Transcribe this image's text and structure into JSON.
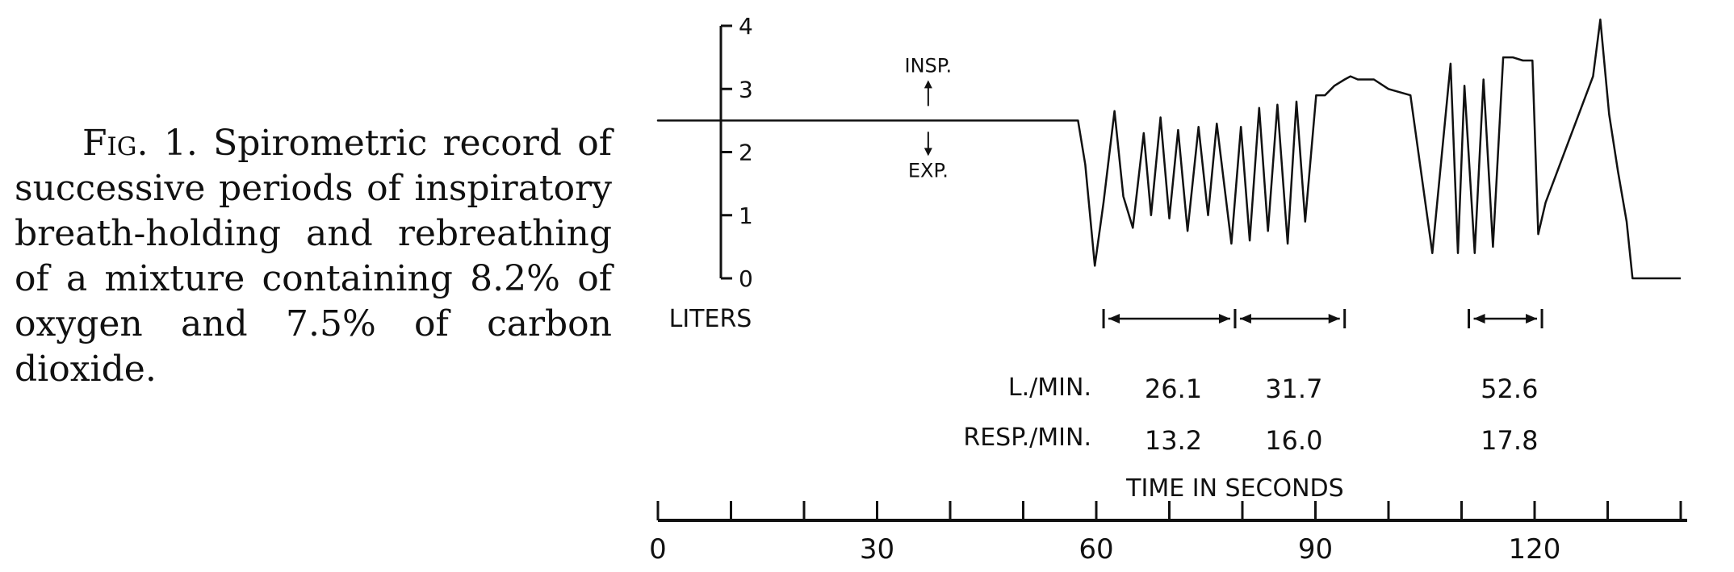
{
  "caption": {
    "figure_label": "Fig. 1.",
    "text": "Spirometric record of successive periods of inspiratory breath-holding and rebreathing of a mixture containing 8.2% of oxygen and 7.5% of carbon dioxide."
  },
  "chart_data": {
    "type": "line",
    "title": "",
    "ylabel": "LITERS",
    "xlabel": "TIME IN SECONDS",
    "ylim": [
      0,
      4
    ],
    "y_ticks": [
      {
        "value": 0,
        "label": "0"
      },
      {
        "value": 1,
        "label": "1"
      },
      {
        "value": 2,
        "label": "2"
      },
      {
        "value": 3,
        "label": "3"
      },
      {
        "value": 4,
        "label": "4"
      }
    ],
    "xlim": [
      0,
      140
    ],
    "x_ticks": [
      0,
      10,
      20,
      30,
      40,
      50,
      60,
      70,
      80,
      90,
      100,
      110,
      120,
      130,
      140
    ],
    "x_tick_labels": [
      {
        "value": 0,
        "label": "0"
      },
      {
        "value": 30,
        "label": "30"
      },
      {
        "value": 60,
        "label": "60"
      },
      {
        "value": 90,
        "label": "90"
      },
      {
        "value": 120,
        "label": "120"
      }
    ],
    "direction_labels": {
      "up": "INSP.",
      "down": "EXP."
    },
    "direction_arrow_x": 37,
    "series": [
      {
        "x": [
          0,
          57.5,
          58.5,
          59.8,
          61,
          62.5,
          63.7,
          65,
          66.5,
          67.5,
          68.8,
          70,
          71.2,
          72.5,
          74,
          75.3,
          76.5,
          78.5,
          79.8,
          81,
          82.3,
          83.5,
          84.8,
          86.2,
          87.4,
          88.6,
          90.1,
          91.3,
          92.6,
          94,
          94.8,
          95.8,
          98,
          100,
          103,
          106,
          108.5,
          109.5,
          110.4,
          111.8,
          113,
          114.3,
          115.7,
          117,
          118.4,
          119.7,
          120.5,
          121.5,
          128,
          129,
          130.2,
          131.4,
          132.6,
          133.4,
          134.2,
          135.6,
          137,
          140
        ],
        "y": [
          2.5,
          2.5,
          1.8,
          0.2,
          1.2,
          2.65,
          1.3,
          0.8,
          2.3,
          1.0,
          2.55,
          0.95,
          2.35,
          0.75,
          2.4,
          1.0,
          2.45,
          0.55,
          2.4,
          0.6,
          2.7,
          0.75,
          2.75,
          0.55,
          2.8,
          0.9,
          2.9,
          2.9,
          3.05,
          3.15,
          3.2,
          3.15,
          3.15,
          3.0,
          2.9,
          0.4,
          3.4,
          0.4,
          3.05,
          0.4,
          3.15,
          0.5,
          3.5,
          3.5,
          3.45,
          3.45,
          0.7,
          1.2,
          3.2,
          4.1,
          2.6,
          1.7,
          0.9,
          0.0,
          0.0,
          0.0,
          0.0,
          0.0
        ]
      }
    ],
    "intervals": [
      {
        "start": 61,
        "end": 79,
        "l_per_min": "26.1",
        "resp_per_min": "13.2"
      },
      {
        "start": 79,
        "end": 94,
        "l_per_min": "31.7",
        "resp_per_min": "16.0"
      },
      {
        "start": 111,
        "end": 121,
        "l_per_min": "52.6",
        "resp_per_min": "17.8"
      }
    ],
    "row_labels": {
      "l_min": "L./MIN.",
      "resp_min": "RESP./MIN."
    }
  }
}
